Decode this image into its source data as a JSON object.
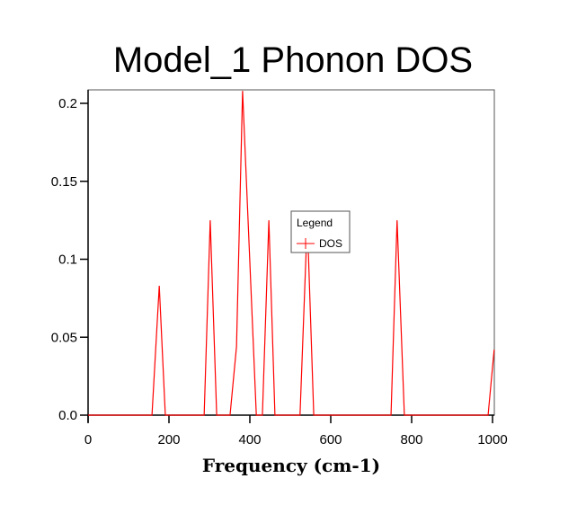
{
  "chart_data": {
    "type": "line",
    "title": "Model_1 Phonon DOS",
    "xlabel": "Frequency (cm-1)",
    "ylabel": "",
    "xlim": [
      0,
      1000
    ],
    "ylim": [
      0,
      0.2
    ],
    "xticks": [
      0,
      200,
      400,
      600,
      800,
      1000
    ],
    "xtick_labels": [
      "0",
      "200",
      "400",
      "600",
      "800",
      "1000"
    ],
    "yticks": [
      0,
      0.05,
      0.1,
      0.15,
      0.2
    ],
    "ytick_labels": [
      "0.0",
      "0.05",
      "0.1",
      "0.15",
      "0.2"
    ],
    "grid": false,
    "legend": {
      "title": "Legend",
      "placement": "center",
      "entries": [
        "DOS"
      ]
    },
    "series": [
      {
        "name": "DOS",
        "color": "#ff0000",
        "x": [
          0,
          158,
          176,
          191,
          287,
          302,
          318,
          351,
          367,
          382,
          416,
          431,
          447,
          462,
          524,
          542,
          558,
          749,
          764,
          782,
          989,
          1004
        ],
        "y": [
          0,
          0,
          0.083,
          0,
          0,
          0.125,
          0,
          0,
          0.044,
          0.208,
          0,
          0,
          0.125,
          0,
          0,
          0.125,
          0,
          0,
          0.125,
          0,
          0,
          0.042
        ]
      }
    ]
  }
}
